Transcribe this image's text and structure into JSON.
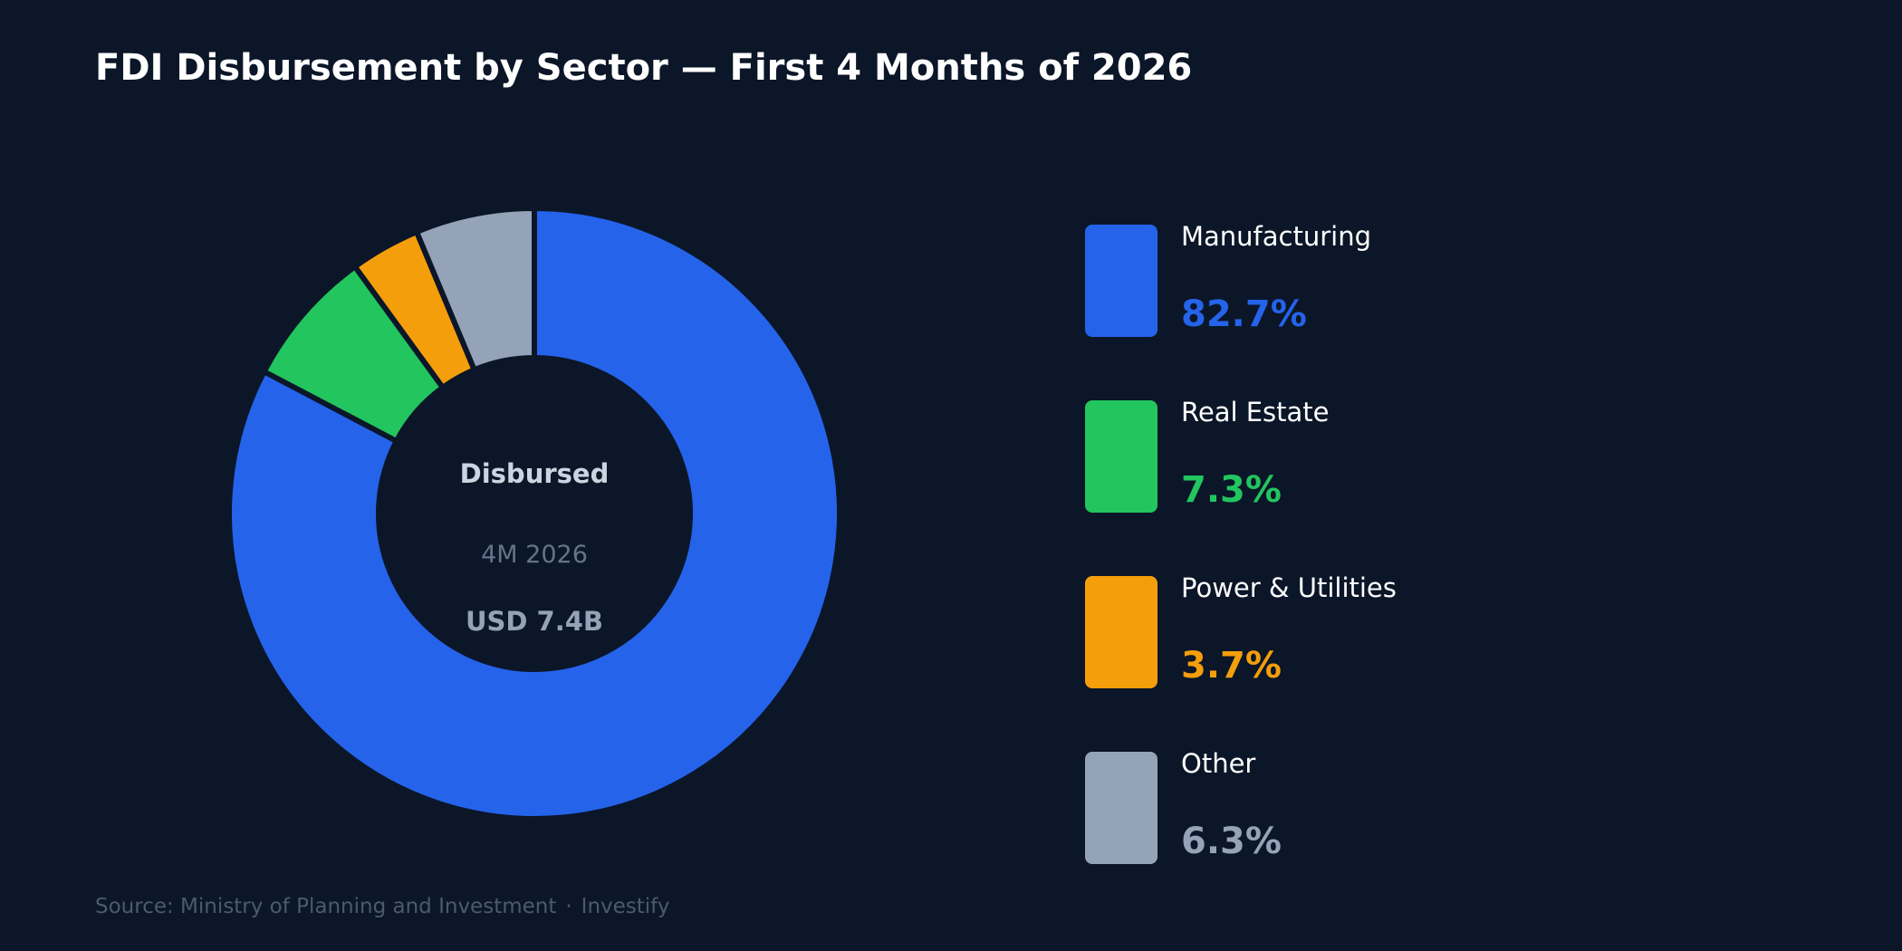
{
  "title": "FDI Disbursement by Sector — First 4 Months of 2026",
  "colors": {
    "background": "#0b1628",
    "manufacturing": "#2563eb",
    "real_estate": "#22c55e",
    "power_utilities": "#f59e0b",
    "other": "#94a3b8"
  },
  "center": {
    "heading": "Disbursed",
    "period": "4M 2026",
    "total": "USD 7.4B"
  },
  "chart_data": {
    "type": "pie",
    "donut": true,
    "title": "FDI Disbursement by Sector — First 4 Months of 2026",
    "categories": [
      "Manufacturing",
      "Real Estate",
      "Power & Utilities",
      "Other"
    ],
    "values": [
      82.7,
      7.3,
      3.7,
      6.3
    ],
    "unit": "%",
    "legend_position": "right"
  },
  "legend": [
    {
      "label": "Manufacturing",
      "value": "82.7%",
      "color": "#2563eb"
    },
    {
      "label": "Real Estate",
      "value": "7.3%",
      "color": "#22c55e"
    },
    {
      "label": "Power & Utilities",
      "value": "3.7%",
      "color": "#f59e0b"
    },
    {
      "label": "Other",
      "value": "6.3%",
      "color": "#94a3b8"
    }
  ],
  "footer": {
    "source": "Source: Ministry of Planning and Investment",
    "separator": "·",
    "brand": "Investify"
  }
}
